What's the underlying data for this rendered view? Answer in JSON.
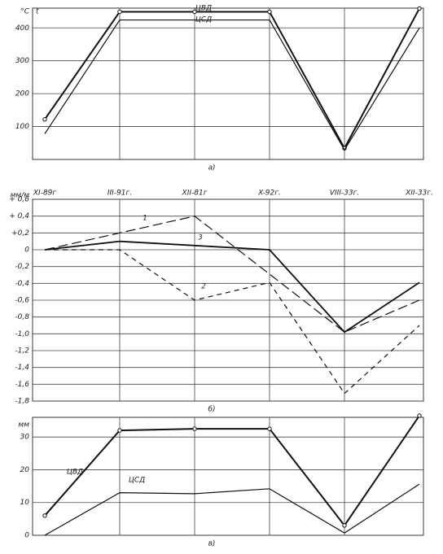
{
  "chart_data": [
    {
      "type": "line",
      "subtitle": "а)",
      "ylabel": "°C",
      "annotation": "t",
      "categories": [
        null,
        null,
        null,
        null,
        null,
        null
      ],
      "series": [
        {
          "name": "ЦВД",
          "color": "#111",
          "width": 2,
          "markers": true,
          "values": [
            122,
            449,
            449,
            449,
            34,
            459
          ]
        },
        {
          "name": "ЦСД",
          "color": "#111",
          "width": 1.2,
          "markers": false,
          "values": [
            78,
            424,
            424,
            424,
            29,
            400
          ]
        }
      ],
      "ylim": [
        0,
        460
      ],
      "yticks": [
        100,
        200,
        300,
        400
      ],
      "grid": true
    },
    {
      "type": "line",
      "subtitle": "б)",
      "ylabel": "мм/м",
      "categories": [
        "XI-89г",
        "III-91г.",
        "XII-81г",
        "X-92г.",
        "VIII-33г.",
        "XII-33г."
      ],
      "series": [
        {
          "name": "1",
          "color": "#111",
          "width": 1.2,
          "dash": "12,5",
          "markers": false,
          "values": [
            0,
            0.2,
            0.4,
            -0.29,
            -0.98,
            -0.6
          ]
        },
        {
          "name": "2",
          "color": "#111",
          "width": 1.2,
          "dash": "6,5",
          "markers": false,
          "values": [
            0,
            0,
            -0.6,
            -0.39,
            -1.71,
            -0.9
          ]
        },
        {
          "name": "3",
          "color": "#111",
          "width": 1.8,
          "markers": false,
          "values": [
            0,
            0.1,
            0.05,
            0,
            -0.98,
            -0.39
          ]
        }
      ],
      "ylim": [
        -1.8,
        0.6
      ],
      "yticks": [
        {
          "value": 0.6,
          "label": "+ 0,6"
        },
        {
          "value": 0.4,
          "label": "+ 0,4"
        },
        {
          "value": 0.2,
          "label": "+0,2"
        },
        0,
        {
          "value": -0.2,
          "label": "-0,2"
        },
        {
          "value": -0.4,
          "label": "-0,4"
        },
        {
          "value": -0.6,
          "label": "-0,6"
        },
        {
          "value": -0.8,
          "label": "-0,8"
        },
        {
          "value": -1.0,
          "label": "-1,0"
        },
        {
          "value": -1.2,
          "label": "-1,2"
        },
        {
          "value": -1.4,
          "label": "-1,4"
        },
        {
          "value": -1.6,
          "label": "-1,6"
        },
        {
          "value": -1.8,
          "label": "-1,8"
        }
      ],
      "grid": true
    },
    {
      "type": "line",
      "subtitle": "в)",
      "ylabel": "мм",
      "categories": [
        null,
        null,
        null,
        null,
        null,
        null
      ],
      "series": [
        {
          "name": "ЦВД",
          "color": "#111",
          "width": 2,
          "markers": true,
          "values": [
            6,
            32,
            32.5,
            32.5,
            3,
            36.5
          ]
        },
        {
          "name": "ЦСД",
          "color": "#111",
          "width": 1.2,
          "markers": false,
          "values": [
            0,
            13,
            12.7,
            14.2,
            0.7,
            15.6
          ]
        }
      ],
      "ylim": [
        0,
        36
      ],
      "yticks": [
        0,
        10,
        20,
        30
      ],
      "grid": true
    }
  ]
}
